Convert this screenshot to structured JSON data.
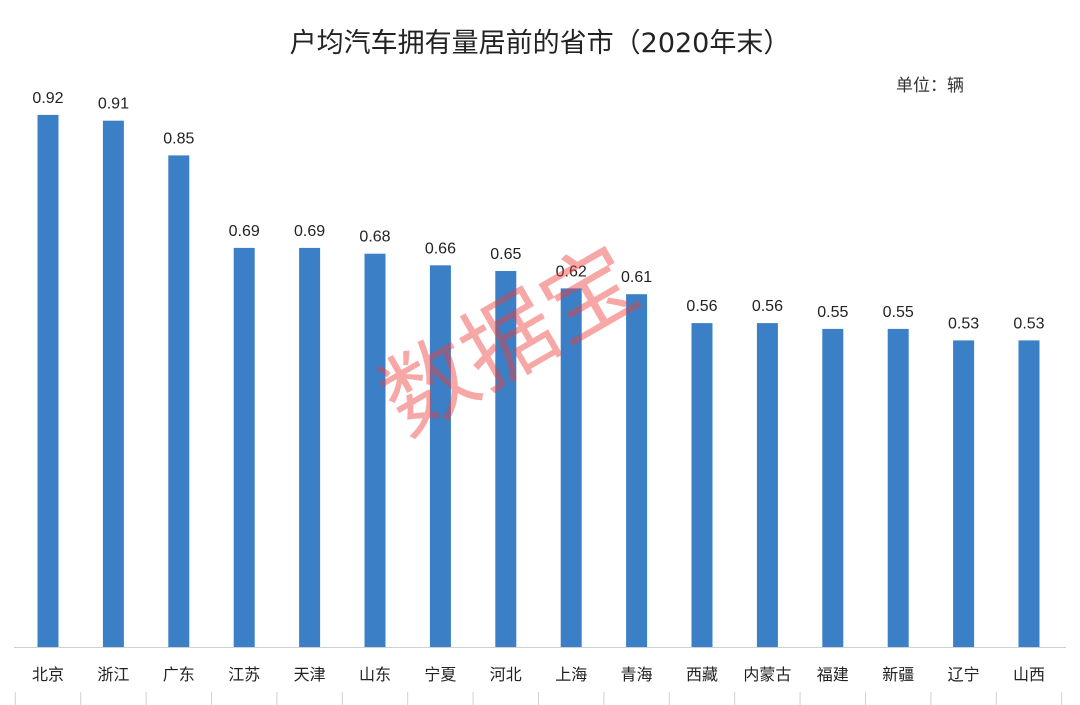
{
  "chart_data": {
    "type": "bar",
    "title": "户均汽车拥有量居前的省市（2020年末）",
    "unit_label": "单位：辆",
    "categories": [
      "北京",
      "浙江",
      "广东",
      "江苏",
      "天津",
      "山东",
      "宁夏",
      "河北",
      "上海",
      "青海",
      "西藏",
      "内蒙古",
      "福建",
      "新疆",
      "辽宁",
      "山西"
    ],
    "series": [
      {
        "values": [
          0.92,
          0.91,
          0.85,
          0.69,
          0.69,
          0.68,
          0.66,
          0.65,
          0.62,
          0.61,
          0.56,
          0.56,
          0.55,
          0.55,
          0.53,
          0.53
        ]
      }
    ],
    "ylim": [
      0,
      1
    ],
    "grid": false,
    "bar_color": "#3b80c6",
    "watermark": "数据宝"
  }
}
